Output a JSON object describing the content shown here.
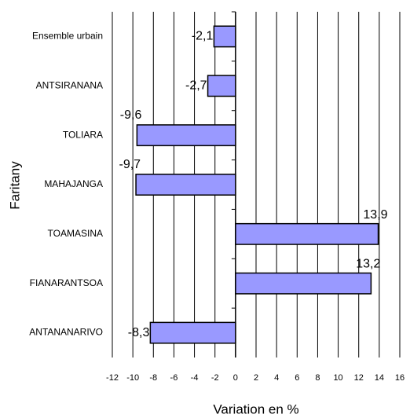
{
  "chart_data": {
    "type": "barh",
    "categories": [
      "Ensemble urbain",
      "ANTSIRANANA",
      "TOLIARA",
      "MAHAJANGA",
      "TOAMASINA",
      "FIANARANTSOA",
      "ANTANANARIVO"
    ],
    "values": [
      -2.1,
      -2.7,
      -9.6,
      -9.7,
      13.9,
      13.2,
      -8.3
    ],
    "value_labels": [
      "-2,1",
      "-2,7",
      "-9,6",
      "-9,7",
      "13,9",
      "13,2",
      "-8,3"
    ],
    "color": "#9999ff",
    "xlim": [
      -12,
      16
    ],
    "xticks": [
      -12,
      -10,
      -8,
      -6,
      -4,
      -2,
      0,
      2,
      4,
      6,
      8,
      10,
      12,
      14,
      16
    ],
    "grid": true,
    "xlabel": "Variation en %",
    "ylabel": "Faritany"
  }
}
